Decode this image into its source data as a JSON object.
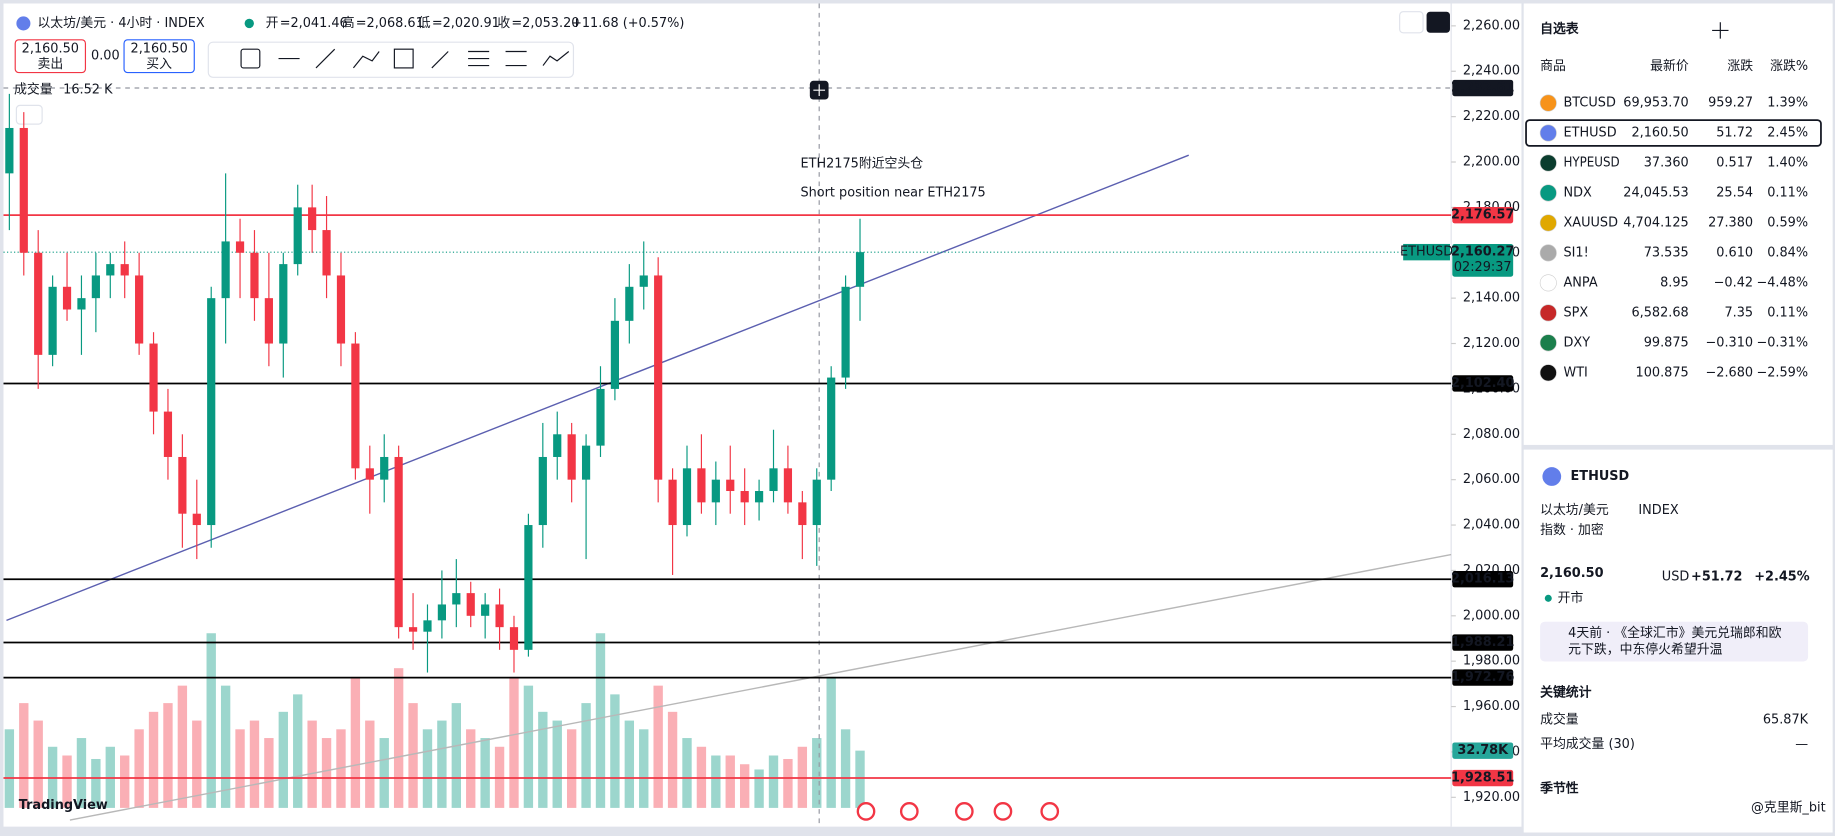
{
  "header": {
    "symbol": "以太坊/美元 · 4小时 · INDEX",
    "open_label": "开",
    "open": "=2,041.46",
    "high_label": "高",
    "high": "=2,068.61",
    "low_label": "低",
    "low": "=2,020.91",
    "close_label": "收",
    "close": "=2,053.20",
    "change": "+11.68 (+0.57%)",
    "sell_price": "2,160.50",
    "sell": "卖出",
    "spread": "0.00",
    "buy_price": "2,160.50",
    "buy": "买入",
    "volume_label": "成交量",
    "volume_value": "16.52 K",
    "logo": "TradingView"
  },
  "chart_data": {
    "type": "candlestick",
    "annotation": [
      "ETH2175附近空头仓",
      "Short position near ETH2175"
    ],
    "ylim": [
      1907.6,
      2271.4
    ],
    "yticks": [
      {
        "value": 2260,
        "label": "2,260.00"
      },
      {
        "value": 2240,
        "label": "2,240.00"
      },
      {
        "value": 2220,
        "label": "2,220.00"
      },
      {
        "value": 2200,
        "label": "2,200.00"
      },
      {
        "value": 2180,
        "label": "2,180.00"
      },
      {
        "value": 2160,
        "label": "2,160.00"
      },
      {
        "value": 2140,
        "label": "2,140.00"
      },
      {
        "value": 2120,
        "label": "2,120.00"
      },
      {
        "value": 2100,
        "label": "2,100.00"
      },
      {
        "value": 2080,
        "label": "2,080.00"
      },
      {
        "value": 2060,
        "label": "2,060.00"
      },
      {
        "value": 2040,
        "label": "2,040.00"
      },
      {
        "value": 2020,
        "label": "2,020.00"
      },
      {
        "value": 2000,
        "label": "2,000.00"
      },
      {
        "value": 1980,
        "label": "1,980.00"
      },
      {
        "value": 1960,
        "label": "1,960.00"
      },
      {
        "value": 1940,
        "label": "1,940.00"
      },
      {
        "value": 1920,
        "label": "1,920.00"
      }
    ],
    "up_color": "#089981",
    "down_color": "#f23645",
    "candles": [
      [
        2195,
        2230,
        2170,
        2215
      ],
      [
        2215,
        2222,
        2150,
        2160
      ],
      [
        2160,
        2170,
        2100,
        2115
      ],
      [
        2115,
        2150,
        2110,
        2145
      ],
      [
        2145,
        2160,
        2130,
        2135
      ],
      [
        2135,
        2150,
        2115,
        2140
      ],
      [
        2140,
        2160,
        2125,
        2150
      ],
      [
        2150,
        2160,
        2140,
        2155
      ],
      [
        2155,
        2165,
        2140,
        2150
      ],
      [
        2150,
        2160,
        2115,
        2120
      ],
      [
        2120,
        2125,
        2080,
        2090
      ],
      [
        2090,
        2100,
        2060,
        2070
      ],
      [
        2070,
        2080,
        2030,
        2045
      ],
      [
        2045,
        2060,
        2025,
        2040
      ],
      [
        2040,
        2145,
        2030,
        2140
      ],
      [
        2140,
        2195,
        2120,
        2165
      ],
      [
        2165,
        2175,
        2140,
        2160
      ],
      [
        2160,
        2170,
        2130,
        2140
      ],
      [
        2140,
        2160,
        2110,
        2120
      ],
      [
        2120,
        2160,
        2105,
        2155
      ],
      [
        2155,
        2190,
        2150,
        2180
      ],
      [
        2180,
        2190,
        2160,
        2170
      ],
      [
        2170,
        2185,
        2140,
        2150
      ],
      [
        2150,
        2160,
        2110,
        2120
      ],
      [
        2120,
        2125,
        2060,
        2065
      ],
      [
        2065,
        2075,
        2045,
        2060
      ],
      [
        2060,
        2080,
        2050,
        2070
      ],
      [
        2070,
        2075,
        1990,
        1995
      ],
      [
        1995,
        2010,
        1985,
        1993
      ],
      [
        1993,
        2005,
        1975,
        1998
      ],
      [
        1998,
        2020,
        1990,
        2005
      ],
      [
        2005,
        2025,
        1995,
        2010
      ],
      [
        2010,
        2015,
        1995,
        2000
      ],
      [
        2000,
        2010,
        1990,
        2005
      ],
      [
        2005,
        2012,
        1985,
        1995
      ],
      [
        1995,
        2000,
        1975,
        1985
      ],
      [
        1985,
        2045,
        1982,
        2040
      ],
      [
        2040,
        2085,
        2030,
        2070
      ],
      [
        2070,
        2090,
        2060,
        2080
      ],
      [
        2080,
        2085,
        2050,
        2060
      ],
      [
        2060,
        2080,
        2025,
        2075
      ],
      [
        2075,
        2110,
        2070,
        2100
      ],
      [
        2100,
        2140,
        2095,
        2130
      ],
      [
        2130,
        2155,
        2120,
        2145
      ],
      [
        2145,
        2165,
        2135,
        2150
      ],
      [
        2150,
        2158,
        2050,
        2060
      ],
      [
        2060,
        2065,
        2018,
        2040
      ],
      [
        2040,
        2075,
        2035,
        2065
      ],
      [
        2065,
        2080,
        2045,
        2050
      ],
      [
        2050,
        2068,
        2040,
        2060
      ],
      [
        2060,
        2075,
        2045,
        2055
      ],
      [
        2055,
        2065,
        2040,
        2050
      ],
      [
        2050,
        2060,
        2042,
        2055
      ],
      [
        2055,
        2082,
        2050,
        2065
      ],
      [
        2065,
        2075,
        2045,
        2050
      ],
      [
        2050,
        2055,
        2025,
        2040
      ],
      [
        2040,
        2065,
        2022,
        2060
      ],
      [
        2060,
        2110,
        2055,
        2105
      ],
      [
        2105,
        2150,
        2100,
        2145
      ],
      [
        2145,
        2175,
        2130,
        2160.27
      ]
    ],
    "volume": {
      "ylim": [
        0,
        120
      ],
      "values": [
        45,
        60,
        50,
        35,
        30,
        40,
        28,
        35,
        30,
        45,
        55,
        60,
        70,
        50,
        100,
        70,
        45,
        50,
        40,
        55,
        65,
        50,
        40,
        45,
        75,
        50,
        40,
        80,
        60,
        45,
        50,
        60,
        45,
        40,
        35,
        75,
        70,
        55,
        50,
        45,
        60,
        100,
        65,
        50,
        45,
        70,
        55,
        40,
        35,
        30,
        30,
        25,
        22,
        30,
        28,
        35,
        40,
        75,
        45,
        32.78
      ],
      "last_label": "32.78K"
    },
    "levels": [
      {
        "value": 2232.61,
        "label": "2,232.61",
        "color": "#9598a1",
        "style": "dashed"
      },
      {
        "value": 2176.57,
        "label": "2,176.57",
        "color": "#f23645",
        "style": "solid"
      },
      {
        "value": 2102.4,
        "label": "2,102.40",
        "color": "#000000",
        "style": "solid"
      },
      {
        "value": 2016.13,
        "label": "2,016.13",
        "color": "#000000",
        "style": "solid"
      },
      {
        "value": 1988.21,
        "label": "1,988.21",
        "color": "#000000",
        "style": "solid"
      },
      {
        "value": 1972.76,
        "label": "1,972.76",
        "color": "#000000",
        "style": "solid"
      },
      {
        "value": 1928.51,
        "label": "1,928.51",
        "color": "#f23645",
        "style": "solid"
      }
    ],
    "current": {
      "value": 2160.27,
      "label": "2,160.27",
      "symbol": "ETHUSD",
      "countdown": "02:29:37",
      "color": "#089981"
    },
    "trendlines": [
      {
        "color": "#5b5fb0",
        "from": [
          -0.2,
          1998
        ],
        "to": [
          81.8,
          2203
        ]
      },
      {
        "color": "#b8b8b8",
        "from": [
          4.2,
          1910
        ],
        "to": [
          100,
          2027
        ]
      }
    ]
  },
  "watchlist": {
    "title": "自选表",
    "columns": [
      "商品",
      "最新价",
      "涨跌",
      "涨跌%"
    ],
    "rows": [
      [
        "BTCUSD",
        "69,953.70",
        "959.27",
        "1.39%"
      ],
      [
        "ETHUSD",
        "2,160.50",
        "51.72",
        "2.45%"
      ],
      [
        "HYPEUSD",
        "37.360",
        "0.517",
        "1.40%"
      ],
      [
        "NDX",
        "24,045.53",
        "25.54",
        "0.11%"
      ],
      [
        "XAUUSD",
        "4,704.125",
        "27.380",
        "0.59%"
      ],
      [
        "SI1!",
        "73.535",
        "0.610",
        "0.84%"
      ],
      [
        "ANPA",
        "8.95",
        "−0.42",
        "−4.48%"
      ],
      [
        "SPX",
        "6,582.68",
        "7.35",
        "0.11%"
      ],
      [
        "DXY",
        "99.875",
        "−0.310",
        "−0.31%"
      ],
      [
        "WTI",
        "100.875",
        "−2.680",
        "−2.59%"
      ]
    ],
    "icons": [
      "#f7931a",
      "#627eea",
      "#0b3d2e",
      "#089981",
      "#e0a800",
      "#aaaaaa",
      "#ffffff",
      "#c62828",
      "#1b7f4c",
      "#111111"
    ]
  },
  "detail": {
    "symbol": "ETHUSD",
    "name": "以太坊/美元",
    "exchange": "INDEX",
    "category": "指数 · 加密",
    "price": "2,160.50",
    "currency": "USD",
    "change": "+51.72",
    "change_pct": "+2.45%",
    "status": "开市",
    "news": [
      "4天前 · 《全球汇市》美元兑瑞郎和欧",
      "元下跌，中东停火希望升温"
    ],
    "stats_title": "关键统计",
    "stats": [
      [
        "成交量",
        "65.87K"
      ],
      [
        "平均成交量 (30)",
        "—"
      ]
    ],
    "seasonality": "季节性",
    "watermark": "@克里斯_bit"
  }
}
